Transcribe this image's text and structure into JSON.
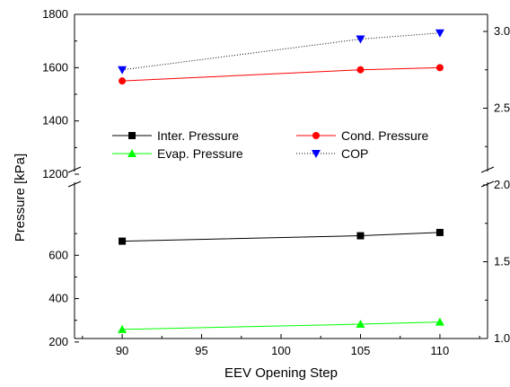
{
  "chart_data": {
    "type": "line",
    "title": "",
    "xlabel": "EEV Opening Step",
    "ylabel": "Pressure [kPa]",
    "x_ticks": [
      90,
      95,
      100,
      105,
      110
    ],
    "xlim": [
      87,
      113
    ],
    "y_left_upper": {
      "range": [
        1200,
        1800
      ],
      "ticks": [
        1200,
        1400,
        1600,
        1800
      ]
    },
    "y_left_lower": {
      "range": [
        100,
        800
      ],
      "ticks": [
        200,
        400,
        600
      ]
    },
    "y_left_axis_break": true,
    "y_right": {
      "range": [
        1.0,
        3.2
      ],
      "ticks": [
        1.0,
        1.5,
        2.0,
        2.5,
        3.0
      ],
      "tick_labels": [
        "1.0",
        "1.5",
        "2.0",
        "2.5",
        "3.0"
      ],
      "axis_break": true
    },
    "legend_position": "center, inside plot",
    "series": [
      {
        "name": "Inter. Pressure",
        "axis": "left",
        "color": "#000000",
        "marker": "square",
        "line": "solid",
        "x": [
          90,
          105,
          110
        ],
        "values": [
          665,
          690,
          705
        ]
      },
      {
        "name": "Cond. Pressure",
        "axis": "left",
        "color": "#ff0000",
        "marker": "circle",
        "line": "solid",
        "x": [
          90,
          105,
          110
        ],
        "values": [
          1550,
          1592,
          1600
        ]
      },
      {
        "name": "Evap. Pressure",
        "axis": "left",
        "color": "#00ff00",
        "marker": "triangle-up",
        "line": "solid",
        "x": [
          90,
          105,
          110
        ],
        "values": [
          258,
          282,
          292
        ]
      },
      {
        "name": "COP",
        "axis": "right",
        "color": "#0000ff",
        "marker": "triangle-down",
        "line": "dotted",
        "line_color": "#000000",
        "x": [
          90,
          105,
          110
        ],
        "values": [
          2.75,
          2.95,
          2.99
        ]
      }
    ]
  }
}
